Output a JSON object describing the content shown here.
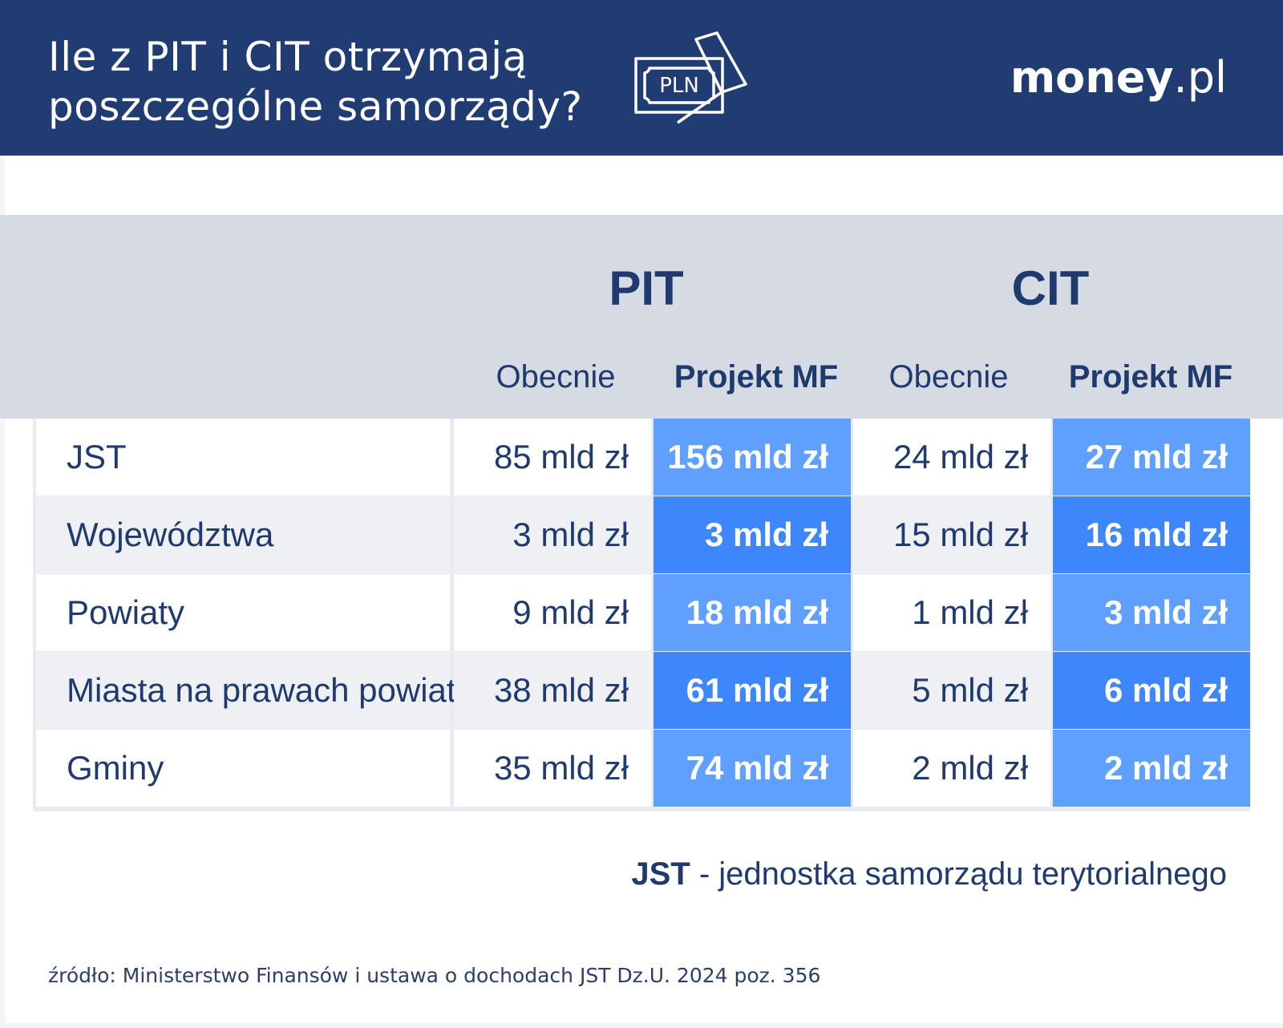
{
  "header": {
    "title_line1": "Ile z PIT i CIT otrzymają",
    "title_line2": "poszczególne samorządy?",
    "icon": "pln-banknote-icon",
    "icon_text": "PLN",
    "logo_bold": "money",
    "logo_rest": ".pl"
  },
  "colors": {
    "header_bg": "#203c72",
    "header_band_bg": "#d5dae3",
    "highlight_light": "#5fa0ff",
    "highlight_dark": "#3e86fb",
    "text": "#1f3a6e"
  },
  "table": {
    "groups": [
      "PIT",
      "CIT"
    ],
    "subheaders": [
      "Obecnie",
      "Projekt MF",
      "Obecnie",
      "Projekt MF"
    ],
    "rows": [
      {
        "name": "JST",
        "pit_now": "85 mld zł",
        "pit_mf": "156 mld zł",
        "cit_now": "24 mld zł",
        "cit_mf": "27 mld zł"
      },
      {
        "name": "Województwa",
        "pit_now": "3 mld zł",
        "pit_mf": "3 mld zł",
        "cit_now": "15 mld zł",
        "cit_mf": "16 mld zł"
      },
      {
        "name": "Powiaty",
        "pit_now": "9 mld zł",
        "pit_mf": "18 mld zł",
        "cit_now": "1 mld zł",
        "cit_mf": "3 mld zł"
      },
      {
        "name": "Miasta na prawach powiatu",
        "pit_now": "38 mld zł",
        "pit_mf": "61 mld zł",
        "cit_now": "5 mld zł",
        "cit_mf": "6 mld zł"
      },
      {
        "name": "Gminy",
        "pit_now": "35 mld zł",
        "pit_mf": "74 mld zł",
        "cit_now": "2 mld zł",
        "cit_mf": "2 mld zł"
      }
    ]
  },
  "footnote": {
    "term": "JST",
    "definition": " - jednostka samorządu terytorialnego"
  },
  "source": "źródło: Ministerstwo Finansów i ustawa o dochodach JST Dz.U. 2024 poz. 356"
}
